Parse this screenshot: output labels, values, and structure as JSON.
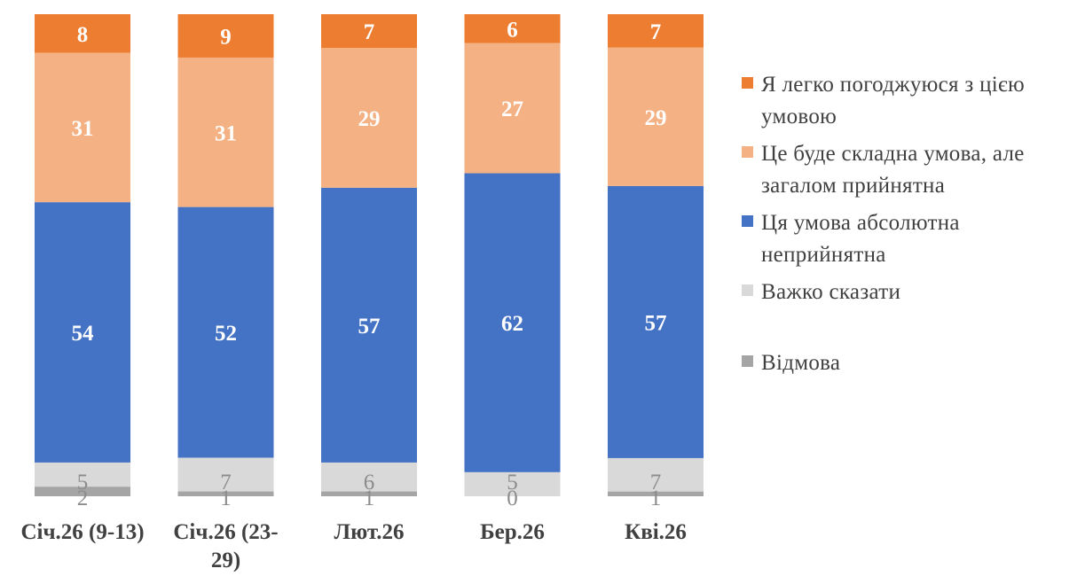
{
  "chart_data": {
    "type": "stacked_bar",
    "categories": [
      "Січ.26 (9-13)",
      "Січ.26 (23-29)",
      "Лют.26",
      "Бер.26",
      "Кві.26"
    ],
    "category_display_lines": [
      [
        "Січ.26 (9-13)"
      ],
      [
        "Січ.26 (23-",
        "29)"
      ],
      [
        "Лют.26"
      ],
      [
        "Бер.26"
      ],
      [
        "Кві.26"
      ]
    ],
    "series": [
      {
        "name": "Відмова",
        "color": "#a5a5a5",
        "label_color": "#8c8c8c",
        "values": [
          2,
          1,
          1,
          0,
          1
        ]
      },
      {
        "name": "Важко сказати",
        "color": "#d9d9d9",
        "label_color": "#8c8c8c",
        "values": [
          5,
          7,
          6,
          5,
          7
        ]
      },
      {
        "name": "Ця умова абсолютна неприйнятна",
        "color": "#4472c4",
        "label_color": "#ffffff",
        "values": [
          54,
          52,
          57,
          62,
          57
        ]
      },
      {
        "name": "Це буде складна умова, але загалом прийнятна",
        "color": "#f4b183",
        "label_color": "#ffffff",
        "values": [
          31,
          31,
          29,
          27,
          29
        ]
      },
      {
        "name": "Я легко погоджуюся з цією умовою",
        "color": "#ed7d31",
        "label_color": "#ffffff",
        "values": [
          8,
          9,
          7,
          6,
          7
        ]
      }
    ],
    "legend": [
      {
        "lines": [
          "Я легко погоджуюся з цією",
          "умовою"
        ],
        "color": "#ed7d31"
      },
      {
        "lines": [
          "Це буде складна умова, але",
          "загалом прийнятна"
        ],
        "color": "#f4b183"
      },
      {
        "lines": [
          "Ця умова абсолютна",
          "неприйнятна"
        ],
        "color": "#4472c4"
      },
      {
        "lines": [
          "Важко сказати"
        ],
        "color": "#d9d9d9"
      },
      {
        "lines": [
          "Відмова"
        ],
        "color": "#a5a5a5"
      }
    ],
    "legend_position": "right",
    "ylim": [
      0,
      100
    ],
    "grid": false
  }
}
